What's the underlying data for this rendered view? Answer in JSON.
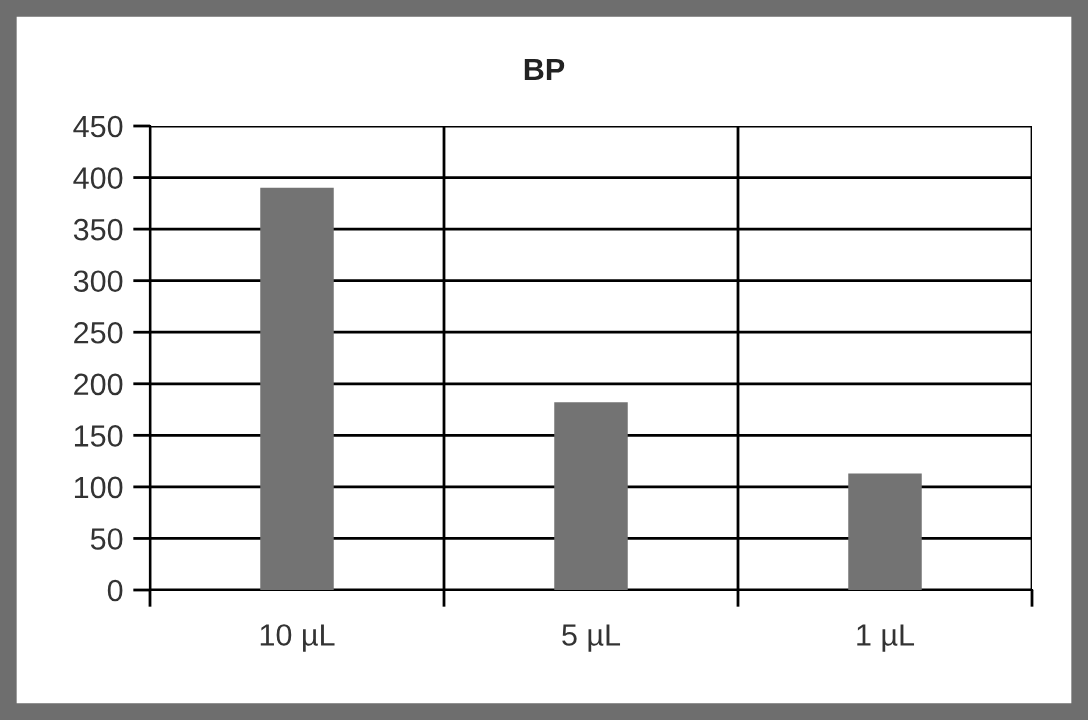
{
  "chart_data": {
    "type": "bar",
    "title": "BP",
    "categories": [
      "10 µL",
      "5 µL",
      "1 µL"
    ],
    "values": [
      390,
      182,
      113
    ],
    "color": "#737373",
    "ylim": [
      0,
      450
    ],
    "yticks": [
      0,
      50,
      100,
      150,
      200,
      250,
      300,
      350,
      400,
      450
    ],
    "grid": true
  }
}
